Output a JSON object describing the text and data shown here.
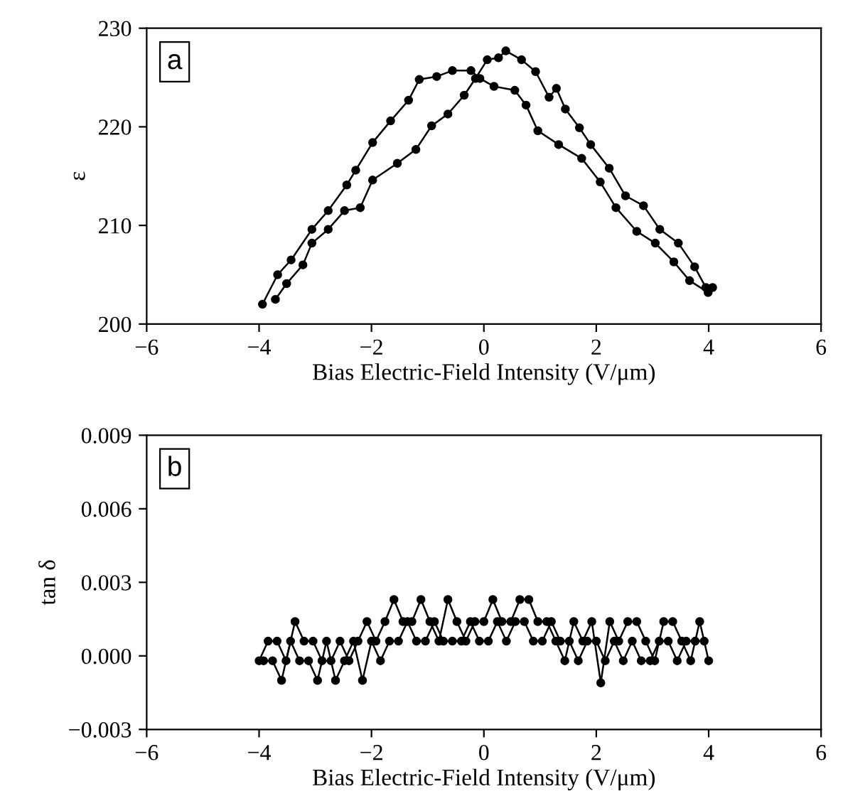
{
  "chart_data": [
    {
      "type": "line",
      "xlabel": "Bias Electric-Field Intensity (V/μm)",
      "ylabel": "ε",
      "annotations": [
        "a"
      ],
      "marker": "circle",
      "line_style": "solid",
      "grid": false,
      "legend": false,
      "xlim": [
        -6,
        6
      ],
      "xticks": [
        {
          "value": -6,
          "label": "−6"
        },
        {
          "value": -4,
          "label": "−4"
        },
        {
          "value": -2,
          "label": "−2"
        },
        0,
        2,
        4,
        6
      ],
      "ylim": [
        200,
        230
      ],
      "yticks": [
        200,
        210,
        220,
        230
      ],
      "series": [
        {
          "color": "#000000",
          "x": [
            -3.94,
            -3.67,
            -3.43,
            -3.06,
            -2.77,
            -2.44,
            -2.28,
            -1.98,
            -1.66,
            -1.34,
            -1.15,
            -0.84,
            -0.56,
            -0.23,
            -0.07,
            0.18,
            0.55,
            0.75,
            0.96,
            1.33,
            1.74,
            2.07,
            2.35,
            2.72,
            3.05,
            3.38,
            3.66,
            3.99
          ],
          "values": [
            202.0,
            205.0,
            206.5,
            209.6,
            211.5,
            214.1,
            215.6,
            218.4,
            220.6,
            222.7,
            224.8,
            225.1,
            225.7,
            225.7,
            224.9,
            224.1,
            223.7,
            222.2,
            219.6,
            218.2,
            216.8,
            214.4,
            211.8,
            209.4,
            208.2,
            206.3,
            204.4,
            203.2
          ]
        },
        {
          "color": "#000000",
          "x": [
            -3.71,
            -3.51,
            -3.22,
            -3.06,
            -2.77,
            -2.48,
            -2.2,
            -1.98,
            -1.54,
            -1.21,
            -0.93,
            -0.64,
            -0.35,
            -0.15,
            0.06,
            0.26,
            0.39,
            0.67,
            0.92,
            1.16,
            1.29,
            1.45,
            1.7,
            1.9,
            2.23,
            2.52,
            2.84,
            3.13,
            3.46,
            3.75,
            3.95,
            4.07
          ],
          "values": [
            202.5,
            204.1,
            206.0,
            208.2,
            209.6,
            211.5,
            211.8,
            214.6,
            216.3,
            217.7,
            220.1,
            221.3,
            223.2,
            224.9,
            226.8,
            227.0,
            227.7,
            226.8,
            225.6,
            223.0,
            223.9,
            221.8,
            219.9,
            218.2,
            215.8,
            213.0,
            212.0,
            209.6,
            208.2,
            205.8,
            203.7,
            203.7
          ]
        }
      ]
    },
    {
      "type": "line",
      "xlabel": "Bias Electric-Field Intensity (V/μm)",
      "ylabel": "tan δ",
      "annotations": [
        "b"
      ],
      "marker": "circle",
      "line_style": "solid",
      "grid": false,
      "legend": false,
      "xlim": [
        -6,
        6
      ],
      "xticks": [
        {
          "value": -6,
          "label": "−6"
        },
        {
          "value": -4,
          "label": "−4"
        },
        {
          "value": -2,
          "label": "−2"
        },
        0,
        2,
        4,
        6
      ],
      "ylim": [
        -0.003,
        0.009
      ],
      "yticks": [
        {
          "value": -0.003,
          "label": "−0.003"
        },
        {
          "value": 0,
          "label": "0.000"
        },
        {
          "value": 0.003,
          "label": "0.003"
        },
        {
          "value": 0.006,
          "label": "0.006"
        },
        {
          "value": 0.009,
          "label": "0.009"
        }
      ],
      "series": [
        {
          "color": "#000000",
          "x": [
            -4.0,
            -3.84,
            -3.68,
            -3.52,
            -3.36,
            -3.2,
            -3.04,
            -2.88,
            -2.72,
            -2.56,
            -2.4,
            -2.24,
            -2.08,
            -1.92,
            -1.76,
            -1.6,
            -1.44,
            -1.28,
            -1.12,
            -0.96,
            -0.8,
            -0.64,
            -0.48,
            -0.32,
            -0.16,
            0.0,
            0.16,
            0.32,
            0.48,
            0.64,
            0.8,
            0.96,
            1.12,
            1.28,
            1.44,
            1.6,
            1.76,
            1.92,
            2.08,
            2.24,
            2.4,
            2.56,
            2.72,
            2.88,
            3.04,
            3.2,
            3.36,
            3.52,
            3.68,
            3.84,
            4.0
          ],
          "values": [
            -0.0002,
            0.0006,
            0.0006,
            -0.0002,
            0.0014,
            0.0006,
            0.0006,
            -0.0002,
            -0.0002,
            0.0006,
            -0.0002,
            0.0006,
            0.0014,
            0.0006,
            0.0014,
            0.0023,
            0.0014,
            0.0014,
            0.0023,
            0.0014,
            0.0006,
            0.0023,
            0.0014,
            0.0006,
            0.0014,
            0.0014,
            0.0023,
            0.0014,
            0.0014,
            0.0023,
            0.0023,
            0.0014,
            0.0014,
            0.0006,
            -0.0002,
            0.0014,
            0.0006,
            0.0014,
            -0.0011,
            0.0014,
            0.0006,
            0.0014,
            0.0014,
            0.0006,
            -0.0002,
            0.0014,
            0.0014,
            0.0006,
            -0.0002,
            0.0014,
            -0.0002
          ]
        },
        {
          "color": "#000000",
          "x": [
            -3.92,
            -3.76,
            -3.6,
            -3.44,
            -3.28,
            -3.12,
            -2.96,
            -2.8,
            -2.64,
            -2.48,
            -2.32,
            -2.16,
            -2.0,
            -1.84,
            -1.68,
            -1.52,
            -1.36,
            -1.2,
            -1.04,
            -0.88,
            -0.72,
            -0.56,
            -0.4,
            -0.24,
            -0.08,
            0.08,
            0.24,
            0.4,
            0.56,
            0.72,
            0.88,
            1.04,
            1.2,
            1.36,
            1.52,
            1.68,
            1.84,
            2.0,
            2.16,
            2.32,
            2.48,
            2.64,
            2.8,
            2.96,
            3.12,
            3.28,
            3.44,
            3.6,
            3.76,
            3.92
          ],
          "values": [
            -0.0002,
            -0.0002,
            -0.001,
            0.0006,
            -0.0002,
            -0.0002,
            -0.001,
            0.0006,
            -0.001,
            -0.0002,
            0.0006,
            -0.001,
            0.0006,
            -0.0002,
            0.0006,
            0.0006,
            0.0014,
            0.0006,
            0.0006,
            0.0014,
            0.0006,
            0.0006,
            0.0006,
            0.0014,
            0.0006,
            0.0006,
            0.0014,
            0.0006,
            0.0014,
            0.0014,
            0.0006,
            0.0006,
            0.0014,
            0.0006,
            0.0006,
            -0.0002,
            0.0006,
            0.0006,
            -0.0002,
            0.0006,
            -0.0002,
            0.0006,
            -0.0002,
            -0.0002,
            0.0006,
            0.0006,
            -0.0002,
            0.0006,
            0.0006,
            0.0006
          ]
        }
      ]
    }
  ]
}
